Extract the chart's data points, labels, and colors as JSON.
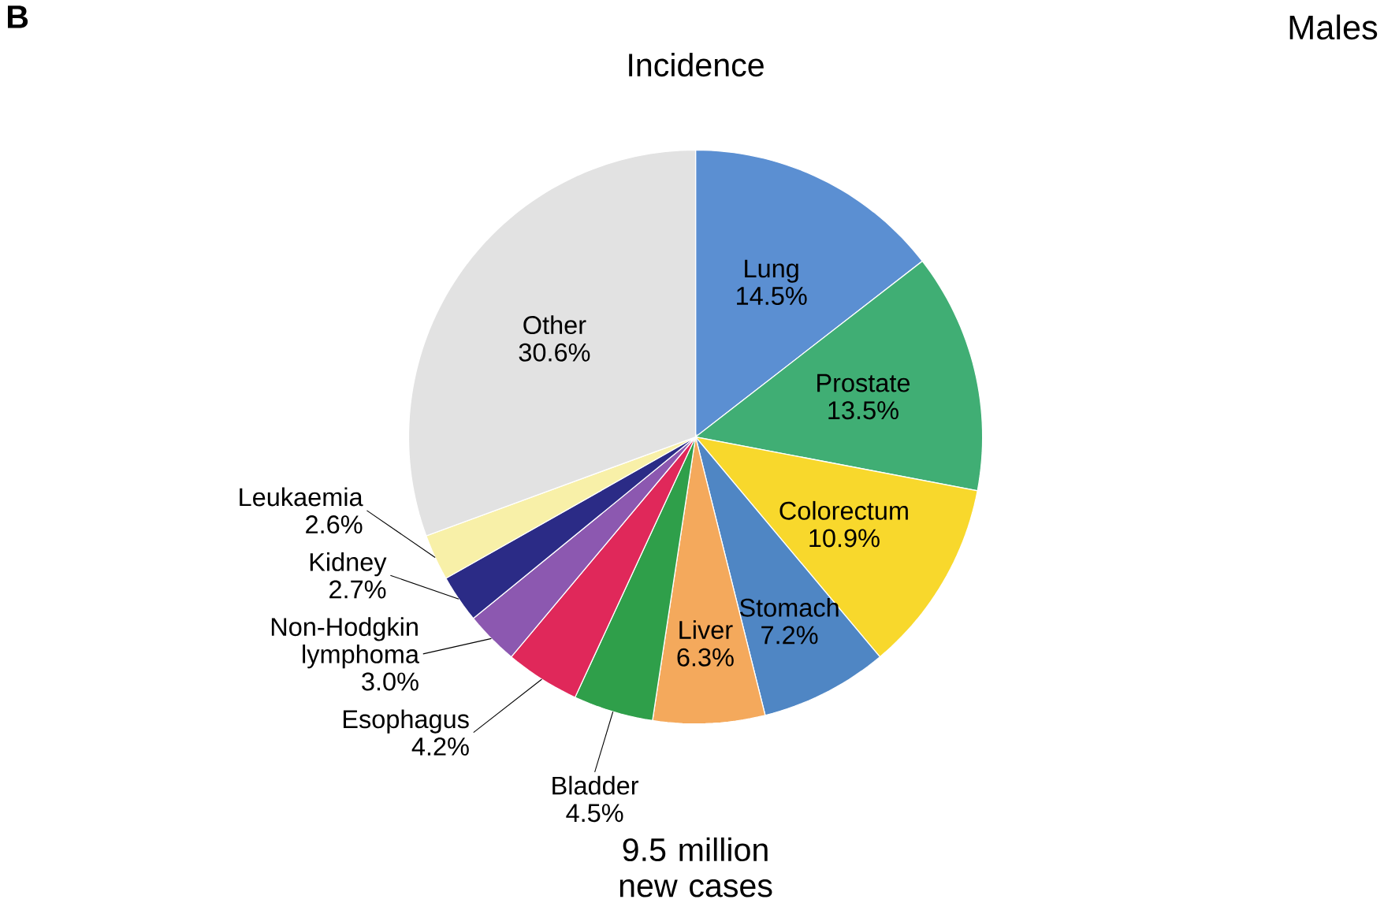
{
  "chart_data": {
    "type": "pie",
    "title": "Incidence",
    "categories": [
      "Lung",
      "Prostate",
      "Colorectum",
      "Stomach",
      "Liver",
      "Bladder",
      "Esophagus",
      "Non-Hodgkin lymphoma",
      "Kidney",
      "Leukaemia",
      "Other"
    ],
    "values": [
      14.5,
      13.5,
      10.9,
      7.2,
      6.3,
      4.5,
      4.2,
      3.0,
      2.7,
      2.6,
      30.6
    ],
    "value_labels": [
      "14.5%",
      "13.5%",
      "10.9%",
      "7.2%",
      "6.3%",
      "4.5%",
      "4.2%",
      "3.0%",
      "2.7%",
      "2.6%",
      "30.6%"
    ],
    "colors": [
      "#5b8fd2",
      "#40ae74",
      "#f8d82c",
      "#4f86c4",
      "#f4a95c",
      "#2f9f4a",
      "#e0285a",
      "#8c58b0",
      "#2b2b86",
      "#f8f0a8",
      "#e2e2e2"
    ],
    "annotations": [
      "B",
      "Males",
      "9.5 million new cases"
    ]
  }
}
